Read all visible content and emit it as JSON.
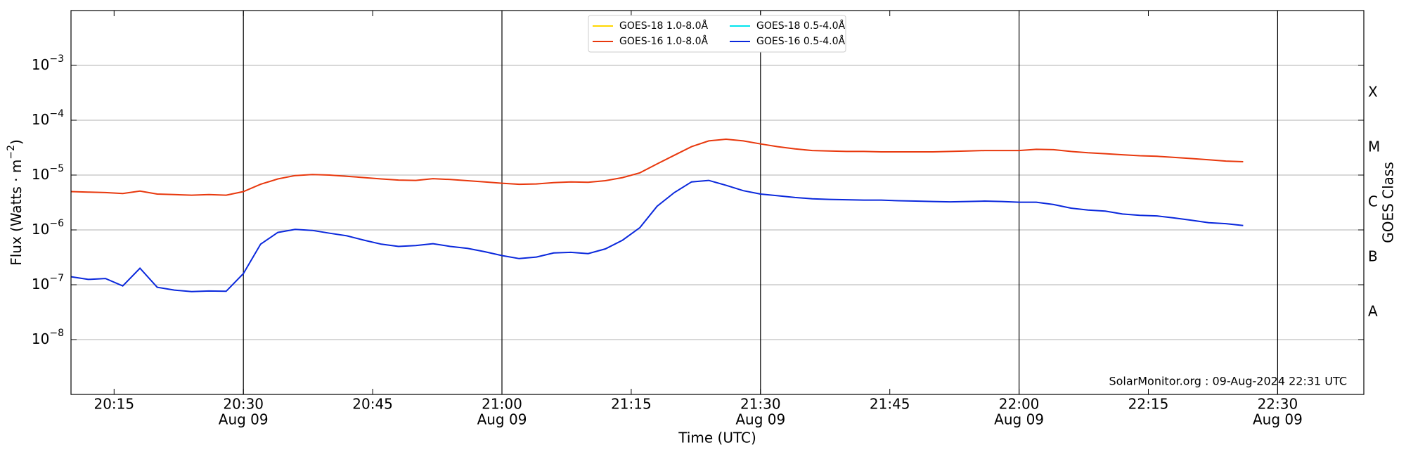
{
  "chart_data": {
    "type": "line",
    "xlabel": "Time (UTC)",
    "ylabel": {
      "text": "Flux (Watts · m",
      "exponent": "−2",
      "suffix": ")"
    },
    "y2label": "GOES Class",
    "annotation": "SolarMonitor.org : 09-Aug-2024 22:31 UTC",
    "log_y": true,
    "grid": true,
    "major_vlines": true,
    "legend": "upper center",
    "xlim": [
      "20:10",
      "22:40"
    ],
    "xticks": [
      {
        "value": "20:15",
        "label": "20:15"
      },
      {
        "value": "20:30",
        "label": "20:30",
        "sublabel": "Aug 09"
      },
      {
        "value": "20:45",
        "label": "20:45"
      },
      {
        "value": "21:00",
        "label": "21:00",
        "sublabel": "Aug 09"
      },
      {
        "value": "21:15",
        "label": "21:15"
      },
      {
        "value": "21:30",
        "label": "21:30",
        "sublabel": "Aug 09"
      },
      {
        "value": "21:45",
        "label": "21:45"
      },
      {
        "value": "22:00",
        "label": "22:00",
        "sublabel": "Aug 09"
      },
      {
        "value": "22:15",
        "label": "22:15"
      },
      {
        "value": "22:30",
        "label": "22:30",
        "sublabel": "Aug 09"
      }
    ],
    "ylim": [
      1e-09,
      0.01
    ],
    "yticks": [
      {
        "value": 1e-08,
        "label": "10",
        "exponent": "−8"
      },
      {
        "value": 1e-07,
        "label": "10",
        "exponent": "−7"
      },
      {
        "value": 1e-06,
        "label": "10",
        "exponent": "−6"
      },
      {
        "value": 1e-05,
        "label": "10",
        "exponent": "−5"
      },
      {
        "value": 0.0001,
        "label": "10",
        "exponent": "−4"
      },
      {
        "value": 0.001,
        "label": "10",
        "exponent": "−3"
      }
    ],
    "classes": [
      {
        "value": 1e-08,
        "label": "A"
      },
      {
        "value": 1e-07,
        "label": "B"
      },
      {
        "value": 1e-06,
        "label": "C"
      },
      {
        "value": 1e-05,
        "label": "M"
      },
      {
        "value": 0.0001,
        "label": "X"
      }
    ],
    "x": [
      "20:10",
      "20:12",
      "20:14",
      "20:16",
      "20:18",
      "20:20",
      "20:22",
      "20:24",
      "20:26",
      "20:28",
      "20:30",
      "20:32",
      "20:34",
      "20:36",
      "20:38",
      "20:40",
      "20:42",
      "20:44",
      "20:46",
      "20:48",
      "20:50",
      "20:52",
      "20:54",
      "20:56",
      "20:58",
      "21:00",
      "21:02",
      "21:04",
      "21:06",
      "21:08",
      "21:10",
      "21:12",
      "21:14",
      "21:16",
      "21:18",
      "21:20",
      "21:22",
      "21:24",
      "21:26",
      "21:28",
      "21:30",
      "21:32",
      "21:34",
      "21:36",
      "21:38",
      "21:40",
      "21:42",
      "21:44",
      "21:46",
      "21:48",
      "21:50",
      "21:52",
      "21:54",
      "21:56",
      "21:58",
      "22:00",
      "22:02",
      "22:04",
      "22:06",
      "22:08",
      "22:10",
      "22:12",
      "22:14",
      "22:16",
      "22:18",
      "22:20",
      "22:22",
      "22:24",
      "22:26"
    ],
    "series": [
      {
        "name": "GOES-18 1.0-8.0Å",
        "color": "#ffd700",
        "values": [
          null,
          null,
          null,
          null,
          null,
          null,
          null,
          null,
          null,
          null,
          null,
          null,
          null,
          null,
          null,
          null,
          null,
          null,
          null,
          null,
          null,
          null,
          null,
          null,
          null,
          null,
          null,
          null,
          null,
          null,
          null,
          null,
          null,
          null,
          null,
          null,
          null,
          null,
          null,
          null,
          null,
          null,
          null,
          null,
          null,
          null,
          null,
          null,
          null,
          null,
          null,
          null,
          null,
          null,
          null,
          null,
          null,
          null,
          null,
          null,
          null,
          null,
          null,
          null,
          null,
          null,
          null,
          null,
          null
        ]
      },
      {
        "name": "GOES-16 1.0-8.0Å",
        "color": "#e8380d",
        "values": [
          5e-06,
          4.9e-06,
          4.8e-06,
          4.6e-06,
          5.1e-06,
          4.5e-06,
          4.4e-06,
          4.3e-06,
          4.4e-06,
          4.3e-06,
          5e-06,
          6.8e-06,
          8.5e-06,
          9.8e-06,
          1.02e-05,
          1e-05,
          9.5e-06,
          9e-06,
          8.5e-06,
          8.1e-06,
          8e-06,
          8.6e-06,
          8.3e-06,
          7.9e-06,
          7.5e-06,
          7.1e-06,
          6.8e-06,
          6.9e-06,
          7.3e-06,
          7.5e-06,
          7.4e-06,
          7.9e-06,
          9e-06,
          1.1e-05,
          1.6e-05,
          2.3e-05,
          3.3e-05,
          4.2e-05,
          4.5e-05,
          4.2e-05,
          3.7e-05,
          3.3e-05,
          3e-05,
          2.8e-05,
          2.75e-05,
          2.7e-05,
          2.7e-05,
          2.65e-05,
          2.65e-05,
          2.65e-05,
          2.65e-05,
          2.7e-05,
          2.75e-05,
          2.8e-05,
          2.8e-05,
          2.8e-05,
          2.95e-05,
          2.9e-05,
          2.7e-05,
          2.55e-05,
          2.45e-05,
          2.35e-05,
          2.25e-05,
          2.2e-05,
          2.1e-05,
          2e-05,
          1.9e-05,
          1.8e-05,
          1.75e-05
        ]
      },
      {
        "name": "GOES-18 0.5-4.0Å",
        "color": "#00e5ee",
        "values": [
          null,
          null,
          null,
          null,
          null,
          null,
          null,
          null,
          null,
          null,
          null,
          null,
          null,
          null,
          null,
          null,
          null,
          null,
          null,
          null,
          null,
          null,
          null,
          null,
          null,
          null,
          null,
          null,
          null,
          null,
          null,
          null,
          null,
          null,
          null,
          null,
          null,
          null,
          null,
          null,
          null,
          null,
          null,
          null,
          null,
          null,
          null,
          null,
          null,
          null,
          null,
          null,
          null,
          null,
          null,
          null,
          null,
          null,
          null,
          null,
          null,
          null,
          null,
          null,
          null,
          null,
          null,
          null,
          null
        ]
      },
      {
        "name": "GOES-16 0.5-4.0Å",
        "color": "#0a28dc",
        "values": [
          1.4e-07,
          1.25e-07,
          1.3e-07,
          9.5e-08,
          2e-07,
          9e-08,
          8e-08,
          7.5e-08,
          7.7e-08,
          7.6e-08,
          1.6e-07,
          5.5e-07,
          9e-07,
          1.02e-06,
          9.8e-07,
          8.7e-07,
          7.8e-07,
          6.5e-07,
          5.5e-07,
          5e-07,
          5.2e-07,
          5.6e-07,
          5e-07,
          4.6e-07,
          4e-07,
          3.4e-07,
          3e-07,
          3.2e-07,
          3.8e-07,
          3.9e-07,
          3.7e-07,
          4.5e-07,
          6.5e-07,
          1.1e-06,
          2.7e-06,
          4.8e-06,
          7.5e-06,
          8e-06,
          6.5e-06,
          5.2e-06,
          4.5e-06,
          4.2e-06,
          3.9e-06,
          3.7e-06,
          3.6e-06,
          3.55e-06,
          3.5e-06,
          3.5e-06,
          3.4e-06,
          3.35e-06,
          3.3e-06,
          3.25e-06,
          3.3e-06,
          3.35e-06,
          3.3e-06,
          3.2e-06,
          3.2e-06,
          2.9e-06,
          2.5e-06,
          2.3e-06,
          2.2e-06,
          1.95e-06,
          1.85e-06,
          1.8e-06,
          1.65e-06,
          1.5e-06,
          1.35e-06,
          1.3e-06,
          1.2e-06
        ]
      }
    ]
  }
}
